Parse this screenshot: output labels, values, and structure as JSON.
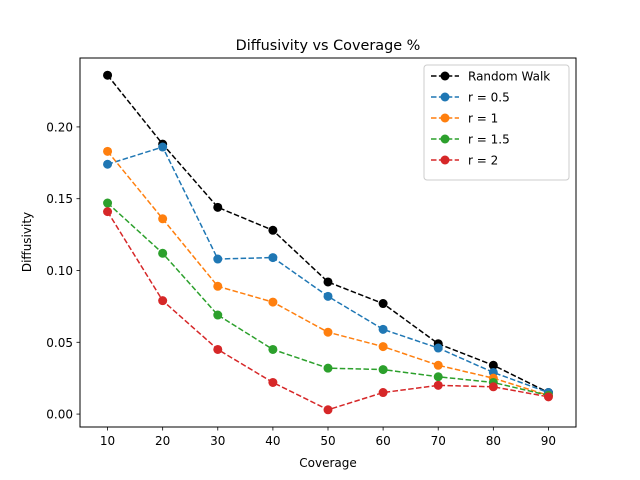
{
  "chart_data": {
    "type": "line",
    "title": "Diffusivity vs Coverage %",
    "xlabel": "Coverage",
    "ylabel": "Diffusivity",
    "x": [
      10,
      20,
      30,
      40,
      50,
      60,
      70,
      80,
      90
    ],
    "xlim": [
      5,
      95
    ],
    "ylim": [
      -0.009,
      0.248
    ],
    "xticks": [
      10,
      20,
      30,
      40,
      50,
      60,
      70,
      80,
      90
    ],
    "yticks": [
      0.0,
      0.05,
      0.1,
      0.15,
      0.2
    ],
    "ytick_labels": [
      "0.00",
      "0.05",
      "0.10",
      "0.15",
      "0.20"
    ],
    "grid": false,
    "legend_position": "top-right",
    "series": [
      {
        "name": "Random Walk",
        "color": "#000000",
        "values": [
          0.236,
          0.188,
          0.144,
          0.128,
          0.092,
          0.077,
          0.049,
          0.034,
          0.015
        ]
      },
      {
        "name": "r = 0.5",
        "color": "#1f77b4",
        "values": [
          0.174,
          0.186,
          0.108,
          0.109,
          0.082,
          0.059,
          0.046,
          0.029,
          0.015
        ]
      },
      {
        "name": "r = 1",
        "color": "#ff7f0e",
        "values": [
          0.183,
          0.136,
          0.089,
          0.078,
          0.057,
          0.047,
          0.034,
          0.025,
          0.013
        ]
      },
      {
        "name": "r = 1.5",
        "color": "#2ca02c",
        "values": [
          0.147,
          0.112,
          0.069,
          0.045,
          0.032,
          0.031,
          0.026,
          0.022,
          0.013
        ]
      },
      {
        "name": "r = 2",
        "color": "#d62728",
        "values": [
          0.141,
          0.079,
          0.045,
          0.022,
          0.003,
          0.015,
          0.02,
          0.019,
          0.012
        ]
      }
    ]
  }
}
